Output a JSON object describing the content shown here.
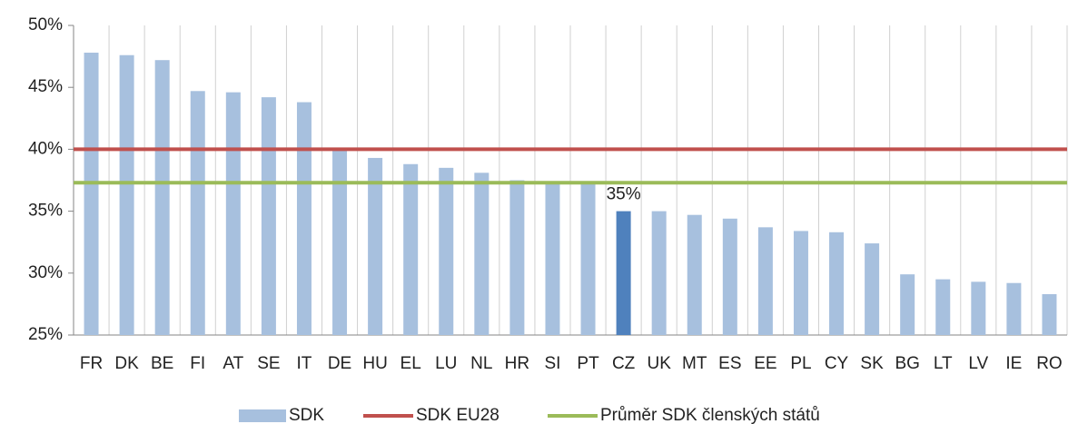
{
  "chart_data": {
    "type": "bar",
    "categories": [
      "FR",
      "DK",
      "BE",
      "FI",
      "AT",
      "SE",
      "IT",
      "DE",
      "HU",
      "EL",
      "LU",
      "NL",
      "HR",
      "SI",
      "PT",
      "CZ",
      "UK",
      "MT",
      "ES",
      "EE",
      "PL",
      "CY",
      "SK",
      "BG",
      "LT",
      "LV",
      "IE",
      "RO"
    ],
    "series": [
      {
        "name": "SDK",
        "color": "#a7c0de",
        "values": [
          47.8,
          47.6,
          47.2,
          44.7,
          44.6,
          44.2,
          43.8,
          40.0,
          39.3,
          38.8,
          38.5,
          38.1,
          37.5,
          37.4,
          37.2,
          35.0,
          35.0,
          34.7,
          34.4,
          33.7,
          33.4,
          33.3,
          32.4,
          29.9,
          29.5,
          29.3,
          29.2,
          28.3
        ],
        "colors": [
          "#a7c0de",
          "#a7c0de",
          "#a7c0de",
          "#a7c0de",
          "#a7c0de",
          "#a7c0de",
          "#a7c0de",
          "#a7c0de",
          "#a7c0de",
          "#a7c0de",
          "#a7c0de",
          "#a7c0de",
          "#a7c0de",
          "#a7c0de",
          "#a7c0de",
          "#4f81bd",
          "#a7c0de",
          "#a7c0de",
          "#a7c0de",
          "#a7c0de",
          "#a7c0de",
          "#a7c0de",
          "#a7c0de",
          "#a7c0de",
          "#a7c0de",
          "#a7c0de",
          "#a7c0de",
          "#a7c0de"
        ],
        "value_labels": [
          null,
          null,
          null,
          null,
          null,
          null,
          null,
          null,
          null,
          null,
          null,
          null,
          null,
          null,
          null,
          "35%",
          null,
          null,
          null,
          null,
          null,
          null,
          null,
          null,
          null,
          null,
          null,
          null
        ]
      }
    ],
    "reference_lines": [
      {
        "name": "SDK EU28",
        "color": "#c0504d",
        "value": 40.0
      },
      {
        "name": "Průměr SDK členských států",
        "color": "#9bbb59",
        "value": 37.3
      }
    ],
    "ylim": [
      25,
      50
    ],
    "yticks": [
      {
        "value": 25,
        "label": "25%"
      },
      {
        "value": 30,
        "label": "30%"
      },
      {
        "value": 35,
        "label": "35%"
      },
      {
        "value": 40,
        "label": "40%"
      },
      {
        "value": 45,
        "label": "45%"
      },
      {
        "value": 50,
        "label": "50%"
      }
    ],
    "legend": "bottom"
  }
}
